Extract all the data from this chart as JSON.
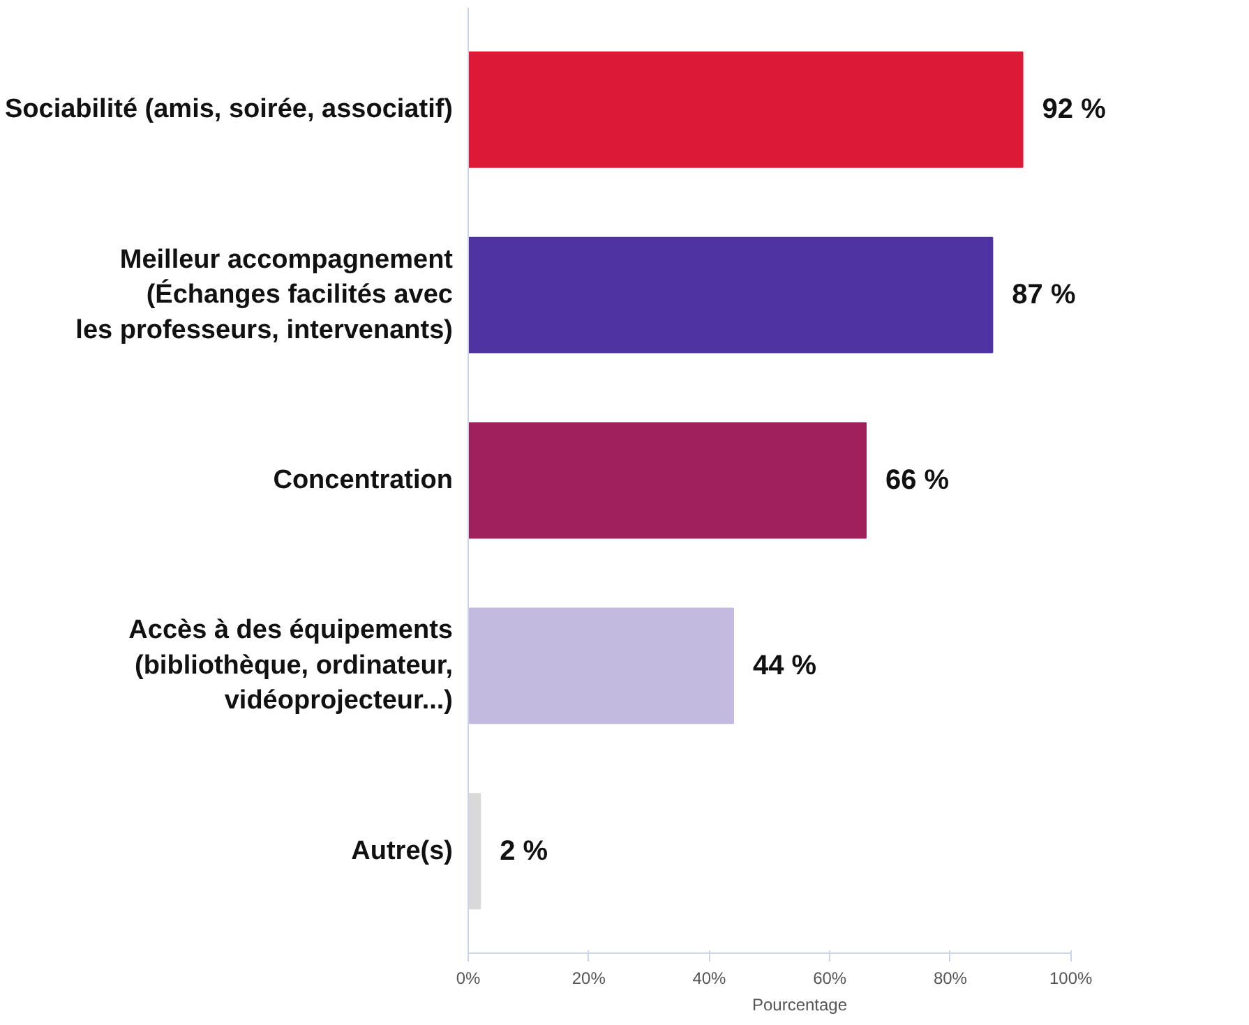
{
  "chart_data": {
    "type": "bar",
    "orientation": "horizontal",
    "xlabel": "Pourcentage",
    "categories": [
      "Sociabilité (amis, soirée, associatif)",
      "Meilleur accompagnement\n(Échanges facilités avec\nles professeurs, intervenants)",
      "Concentration",
      "Accès à des équipements\n(bibliothèque, ordinateur,\nvidéoprojecteur...)",
      "Autre(s)"
    ],
    "values": [
      92,
      87,
      66,
      44,
      2
    ],
    "colors": [
      "#dc1a37",
      "#4f33a3",
      "#a0205e",
      "#c2badf",
      "#d9d9d9"
    ],
    "value_labels": [
      "92 %",
      "87 %",
      "66 %",
      "44 %",
      "2 %"
    ],
    "xlim": [
      0,
      100
    ],
    "xticks": [
      {
        "value": 0,
        "label": "0%"
      },
      {
        "value": 20,
        "label": "20%"
      },
      {
        "value": 40,
        "label": "40%"
      },
      {
        "value": 60,
        "label": "60%"
      },
      {
        "value": 80,
        "label": "80%"
      },
      {
        "value": 100,
        "label": "100%"
      }
    ],
    "grid": false
  }
}
